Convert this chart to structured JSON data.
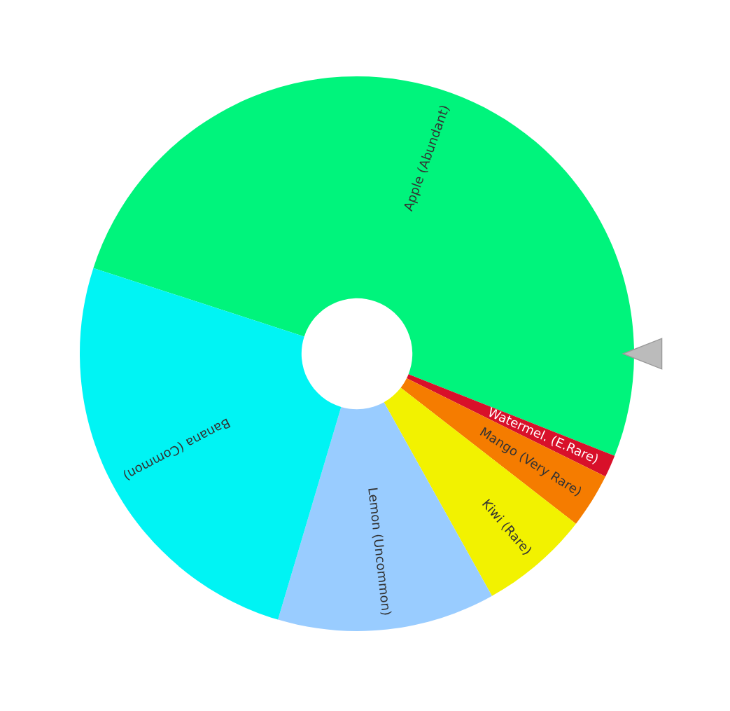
{
  "chart_data": {
    "type": "donut",
    "categories": [
      "Apple (Abundant)",
      "Watermel. (E.Rare)",
      "Mango (Very Rare)",
      "Kiwi (Rare)",
      "Lemon (Uncommon)",
      "Banana (Common)"
    ],
    "values": [
      51,
      1.3,
      3.2,
      6.4,
      12.7,
      25.4
    ],
    "colors": [
      "#00f47c",
      "#d8102a",
      "#f57c00",
      "#f2f200",
      "#99ccff",
      "#00f4f4"
    ]
  }
}
